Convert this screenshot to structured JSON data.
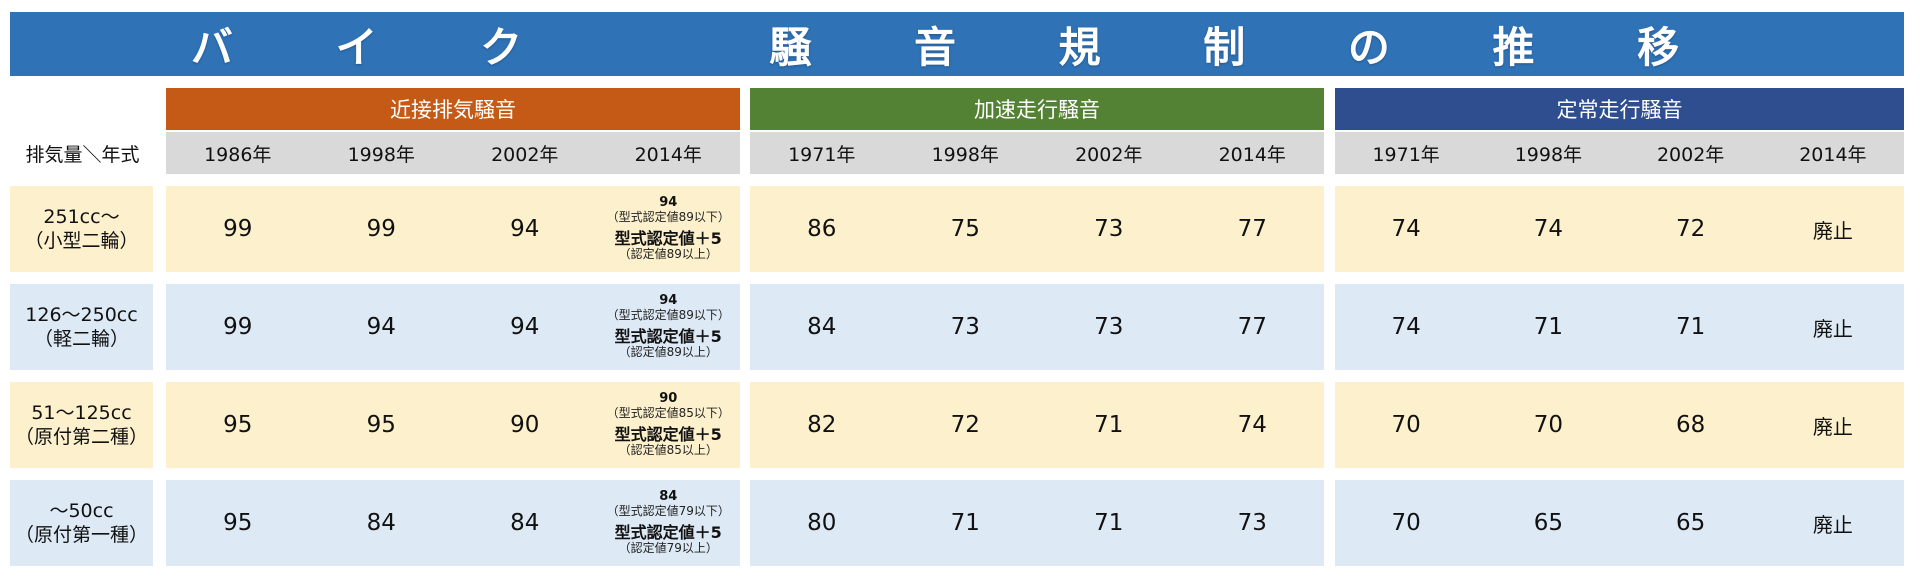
{
  "title": "バ イ ク 　 騒 音 規 制 の 推 移",
  "colors": {
    "title_bg": "#2f72b6",
    "group_proximity": "#c55a16",
    "group_acceleration": "#548235",
    "group_steady": "#2e4e8f",
    "year_strip": "#d9d9d9",
    "row_yellow": "#fdf0cc",
    "row_blue": "#dde9f5"
  },
  "corner_label": "排気量＼年式",
  "groups": [
    {
      "label": "近接排気騒音",
      "years": [
        "1986年",
        "1998年",
        "2002年",
        "2014年"
      ]
    },
    {
      "label": "加速走行騒音",
      "years": [
        "1971年",
        "1998年",
        "2002年",
        "2014年"
      ]
    },
    {
      "label": "定常走行騒音",
      "years": [
        "1971年",
        "1998年",
        "2002年",
        "2014年"
      ]
    }
  ],
  "rows": [
    {
      "label_line1": "251cc～",
      "label_line2": "（小型二輪）",
      "proximity": [
        "99",
        "99",
        "94"
      ],
      "proximity_2014": {
        "top": "94",
        "sub1": "（型式認定値89以下）",
        "main": "型式認定値＋5",
        "sub2": "（認定値89以上）"
      },
      "acceleration": [
        "86",
        "75",
        "73",
        "77"
      ],
      "steady": [
        "74",
        "74",
        "72",
        "廃止"
      ]
    },
    {
      "label_line1": "126～250cc",
      "label_line2": "（軽二輪）",
      "proximity": [
        "99",
        "94",
        "94"
      ],
      "proximity_2014": {
        "top": "94",
        "sub1": "（型式認定値89以下）",
        "main": "型式認定値＋5",
        "sub2": "（認定値89以上）"
      },
      "acceleration": [
        "84",
        "73",
        "73",
        "77"
      ],
      "steady": [
        "74",
        "71",
        "71",
        "廃止"
      ]
    },
    {
      "label_line1": "51～125cc",
      "label_line2": "（原付第二種）",
      "proximity": [
        "95",
        "95",
        "90"
      ],
      "proximity_2014": {
        "top": "90",
        "sub1": "（型式認定値85以下）",
        "main": "型式認定値＋5",
        "sub2": "（認定値85以上）"
      },
      "acceleration": [
        "82",
        "72",
        "71",
        "74"
      ],
      "steady": [
        "70",
        "70",
        "68",
        "廃止"
      ]
    },
    {
      "label_line1": "～50cc",
      "label_line2": "（原付第一種）",
      "proximity": [
        "95",
        "84",
        "84"
      ],
      "proximity_2014": {
        "top": "84",
        "sub1": "（型式認定値79以下）",
        "main": "型式認定値＋5",
        "sub2": "（認定値79以上）"
      },
      "acceleration": [
        "80",
        "71",
        "71",
        "73"
      ],
      "steady": [
        "70",
        "65",
        "65",
        "廃止"
      ]
    }
  ]
}
